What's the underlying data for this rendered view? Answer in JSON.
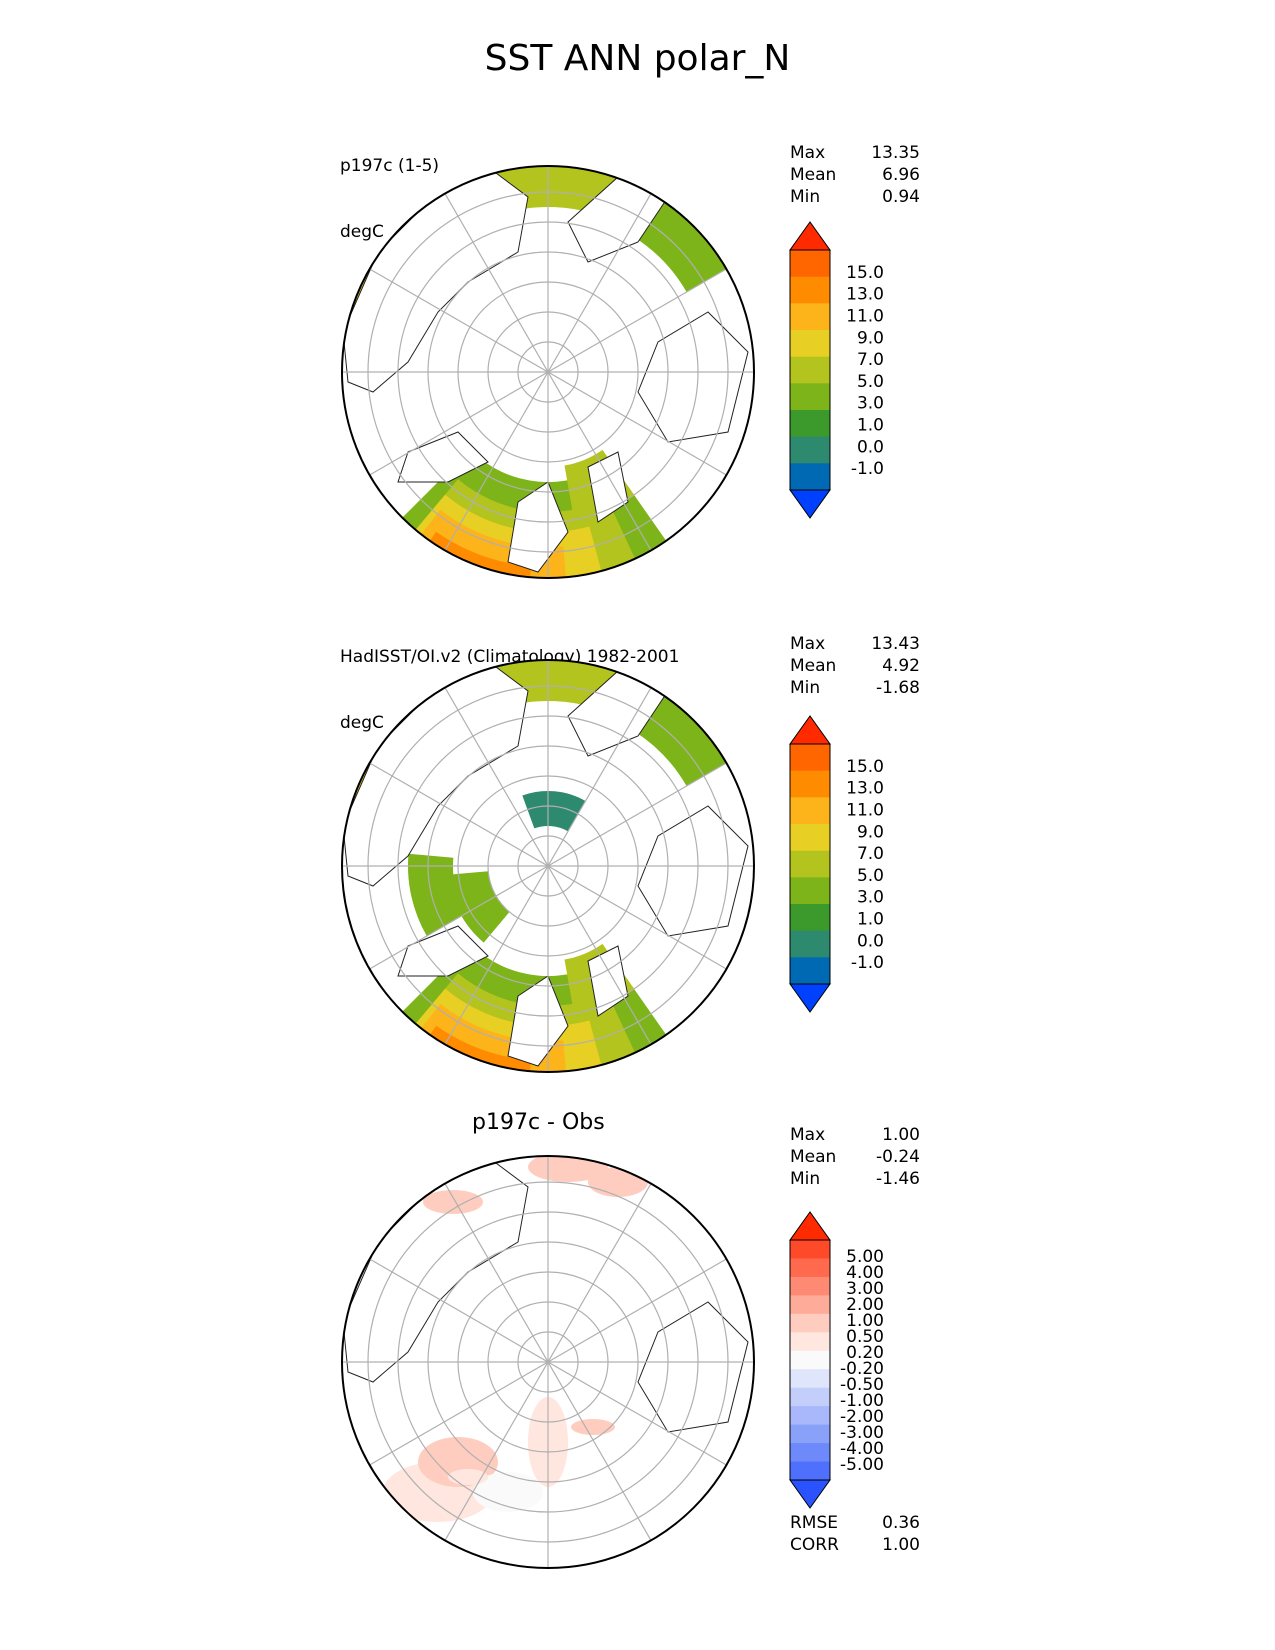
{
  "title": "SST ANN polar_N",
  "panels": [
    {
      "id": "test",
      "label_lines": [
        "p197c (1-5)",
        "degC"
      ],
      "stats": [
        {
          "name": "Max",
          "value": "13.35"
        },
        {
          "name": "Mean",
          "value": "6.96"
        },
        {
          "name": "Min",
          "value": "0.94"
        }
      ],
      "colorbar": {
        "ticks": [
          "15.0",
          "13.0",
          "11.0",
          "9.0",
          "7.0",
          "5.0",
          "3.0",
          "1.0",
          "0.0",
          "-1.0"
        ],
        "colors": [
          "#ff2a00",
          "#ff6600",
          "#ff8c00",
          "#fdb31a",
          "#e8cf24",
          "#b4c41e",
          "#7db419",
          "#3b9a2b",
          "#2e8a6e",
          "#0069b4",
          "#0040ff"
        ]
      }
    },
    {
      "id": "reference",
      "label_lines": [
        "HadISST/OI.v2 (Climatology) 1982-2001",
        "degC"
      ],
      "stats": [
        {
          "name": "Max",
          "value": "13.43"
        },
        {
          "name": "Mean",
          "value": "4.92"
        },
        {
          "name": "Min",
          "value": "-1.68"
        }
      ],
      "colorbar": {
        "ticks": [
          "15.0",
          "13.0",
          "11.0",
          "9.0",
          "7.0",
          "5.0",
          "3.0",
          "1.0",
          "0.0",
          "-1.0"
        ],
        "colors": [
          "#ff2a00",
          "#ff6600",
          "#ff8c00",
          "#fdb31a",
          "#e8cf24",
          "#b4c41e",
          "#7db419",
          "#3b9a2b",
          "#2e8a6e",
          "#0069b4",
          "#0040ff"
        ]
      }
    },
    {
      "id": "difference",
      "title": "p197c - Obs",
      "stats": [
        {
          "name": "Max",
          "value": "1.00"
        },
        {
          "name": "Mean",
          "value": "-0.24"
        },
        {
          "name": "Min",
          "value": "-1.46"
        }
      ],
      "metrics": [
        {
          "name": "RMSE",
          "value": "0.36"
        },
        {
          "name": "CORR",
          "value": "1.00"
        }
      ],
      "colorbar": {
        "ticks": [
          "5.00",
          "4.00",
          "3.00",
          "2.00",
          "1.00",
          "0.50",
          "0.20",
          "-0.20",
          "-0.50",
          "-1.00",
          "-2.00",
          "-3.00",
          "-4.00",
          "-5.00"
        ],
        "colors": [
          "#ff2a00",
          "#ff4a2a",
          "#ff6a4e",
          "#ff8a74",
          "#ffab99",
          "#ffcdbf",
          "#ffe6df",
          "#fafafa",
          "#dfe6fb",
          "#c3cffa",
          "#a8b8fa",
          "#8aa1fa",
          "#6e8afa",
          "#4f70fc",
          "#2b52ff"
        ]
      }
    }
  ],
  "chart_data": [
    {
      "type": "heatmap",
      "projection": "north polar stereographic",
      "title": "p197c (1-5)",
      "units": "degC",
      "stats": {
        "max": 13.35,
        "mean": 6.96,
        "min": 0.94
      },
      "levels": [
        -1.0,
        0.0,
        1.0,
        3.0,
        5.0,
        7.0,
        9.0,
        11.0,
        13.0,
        15.0
      ]
    },
    {
      "type": "heatmap",
      "projection": "north polar stereographic",
      "title": "HadISST/OI.v2 (Climatology) 1982-2001",
      "units": "degC",
      "stats": {
        "max": 13.43,
        "mean": 4.92,
        "min": -1.68
      },
      "levels": [
        -1.0,
        0.0,
        1.0,
        3.0,
        5.0,
        7.0,
        9.0,
        11.0,
        13.0,
        15.0
      ]
    },
    {
      "type": "heatmap",
      "projection": "north polar stereographic",
      "title": "p197c - Obs",
      "stats": {
        "max": 1.0,
        "mean": -0.24,
        "min": -1.46,
        "rmse": 0.36,
        "corr": 1.0
      },
      "levels": [
        -5.0,
        -4.0,
        -3.0,
        -2.0,
        -1.0,
        -0.5,
        -0.2,
        0.2,
        0.5,
        1.0,
        2.0,
        3.0,
        4.0,
        5.0
      ]
    }
  ]
}
